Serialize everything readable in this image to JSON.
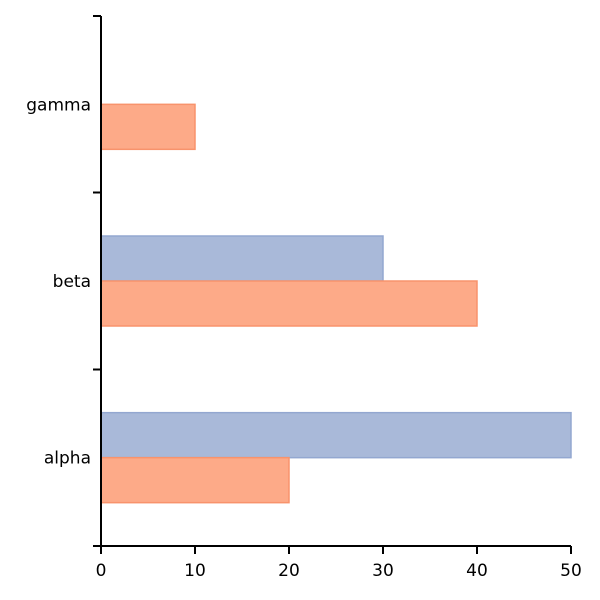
{
  "chart_data": {
    "type": "bar",
    "orientation": "horizontal",
    "categories": [
      "alpha",
      "beta",
      "gamma"
    ],
    "series": [
      {
        "values": [
          50,
          30,
          null
        ],
        "color": "#a9b9d9",
        "stroke": "#93a7d0"
      },
      {
        "values": [
          20,
          40,
          10
        ],
        "color": "#fdaa88",
        "stroke": "#f8936c"
      }
    ],
    "x_ticks": [
      "0",
      "10",
      "20",
      "30",
      "40",
      "50"
    ],
    "xlim": [
      0,
      50
    ],
    "grid": false,
    "legend": "none"
  }
}
